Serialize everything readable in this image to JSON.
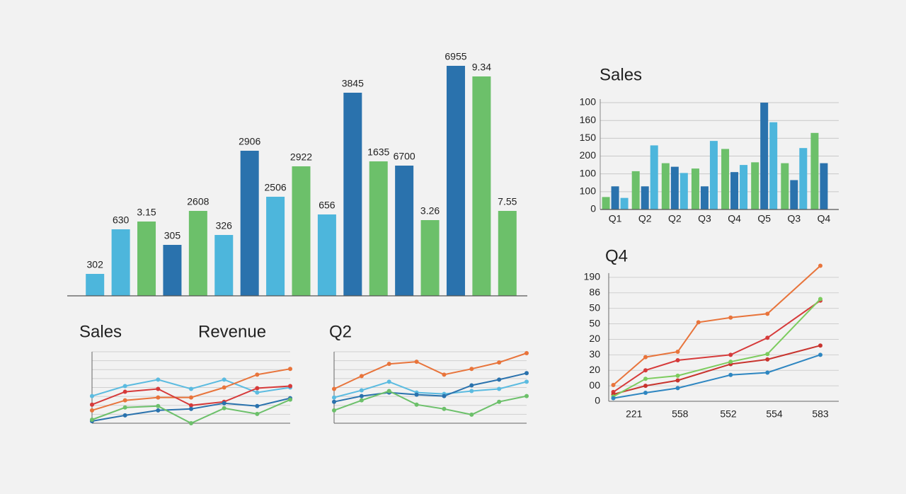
{
  "chart_data": [
    {
      "type": "bar",
      "categories": [
        null,
        null,
        null,
        null,
        null,
        null,
        null,
        null,
        null,
        null,
        null,
        null,
        null,
        null,
        null,
        null,
        null
      ],
      "values": [
        31,
        94,
        105,
        72,
        120,
        86,
        205,
        140,
        183,
        115,
        287,
        190,
        184,
        107,
        325,
        310,
        120
      ],
      "colors": [
        "#4db6dc",
        "#4db6dc",
        "#6cc06a",
        "#2a72ad",
        "#6cc06a",
        "#4db6dc",
        "#2a72ad",
        "#4db6dc",
        "#6cc06a",
        "#4db6dc",
        "#2a72ad",
        "#6cc06a",
        "#2a72ad",
        "#6cc06a",
        "#2a72ad",
        "#6cc06a",
        "#6cc06a"
      ],
      "bar_labels": [
        "302",
        "630",
        "3.15",
        "305",
        "2608",
        "326",
        "2906",
        "2506",
        "2922",
        "656",
        "3845",
        "1635",
        "6700",
        "3.26",
        "6955",
        "9.34",
        "7.55"
      ],
      "ylim": [
        0,
        340
      ]
    },
    {
      "type": "bar",
      "title": "Sales",
      "categories": [
        "Q1",
        "Q2",
        "Q2",
        "Q3",
        "Q4",
        "Q5",
        "Q3",
        "Q4"
      ],
      "series": [
        {
          "color": "#6cc06a",
          "values": [
            14,
            43,
            52,
            46,
            68,
            53,
            52,
            86
          ]
        },
        {
          "color": "#2a72ad",
          "values": [
            26,
            26,
            48,
            26,
            42,
            120,
            33,
            52
          ]
        },
        {
          "color": "#4db6dc",
          "values": [
            13,
            72,
            41,
            77,
            50,
            98,
            69,
            null
          ]
        }
      ],
      "ylim": [
        0,
        124
      ],
      "yticks": [
        0,
        {
          "value": 20,
          "label": "100"
        },
        {
          "value": 40,
          "label": "100"
        },
        {
          "value": 60,
          "label": "200"
        },
        {
          "value": 80,
          "label": "150"
        },
        {
          "value": 100,
          "label": "160"
        },
        {
          "value": 120,
          "label": "100"
        }
      ],
      "grid": true
    },
    {
      "type": "line",
      "title": "Sales",
      "subtitle": "Revenue",
      "categories": [
        null,
        null,
        null,
        null,
        null,
        null,
        null
      ],
      "series": [
        {
          "color": "#5bbbe0",
          "values": [
            38,
            52,
            61,
            48,
            61,
            43,
            50
          ]
        },
        {
          "color": "#e8743b",
          "values": [
            18,
            32,
            36,
            36,
            50,
            68,
            76
          ]
        },
        {
          "color": "#d63a3a",
          "values": [
            26,
            44,
            48,
            25,
            30,
            49,
            52
          ]
        },
        {
          "color": "#2a72ad",
          "values": [
            3,
            11,
            18,
            20,
            28,
            24,
            35
          ]
        },
        {
          "color": "#6cc06a",
          "values": [
            5,
            22,
            24,
            0,
            21,
            13,
            33
          ]
        }
      ],
      "ylim": [
        0,
        100
      ],
      "grid": true
    },
    {
      "type": "line",
      "title": "Q2",
      "categories": [
        null,
        null,
        null,
        null,
        null,
        null,
        null,
        null
      ],
      "series": [
        {
          "color": "#e8743b",
          "values": [
            48,
            66,
            83,
            86,
            68,
            76,
            85,
            98
          ]
        },
        {
          "color": "#5bbbe0",
          "values": [
            36,
            46,
            58,
            43,
            41,
            45,
            48,
            58
          ]
        },
        {
          "color": "#2a72ad",
          "values": [
            30,
            38,
            43,
            40,
            38,
            53,
            61,
            70
          ]
        },
        {
          "color": "#6cc06a",
          "values": [
            18,
            32,
            45,
            26,
            20,
            12,
            30,
            38
          ]
        }
      ],
      "ylim": [
        0,
        100
      ],
      "grid": true
    },
    {
      "type": "line",
      "title": "Q4",
      "series": [
        {
          "color": "#e8743b",
          "x": [
            2,
            16,
            30,
            39,
            53,
            69,
            92
          ],
          "values": [
            21,
            57,
            64,
            102,
            108,
            113,
            175
          ]
        },
        {
          "color": "#d63a3a",
          "x": [
            2,
            16,
            30,
            53,
            69,
            92
          ],
          "values": [
            12,
            40,
            53,
            60,
            82,
            130
          ]
        },
        {
          "color": "#c8342e",
          "x": [
            2,
            16,
            30,
            53,
            69,
            92
          ],
          "values": [
            9,
            20,
            27,
            48,
            54,
            72
          ]
        },
        {
          "color": "#7ccc5e",
          "x": [
            2,
            16,
            30,
            53,
            69,
            92
          ],
          "values": [
            6,
            29,
            33,
            51,
            61,
            132
          ]
        },
        {
          "color": "#2e86c1",
          "x": [
            2,
            16,
            30,
            53,
            69,
            92
          ],
          "values": [
            4,
            11,
            17,
            34,
            37,
            60
          ]
        }
      ],
      "xlim": [
        0,
        100
      ],
      "xticks": [
        {
          "value": 11,
          "label": "221"
        },
        {
          "value": 31,
          "label": "558"
        },
        {
          "value": 52,
          "label": "552"
        },
        {
          "value": 72,
          "label": "554"
        },
        {
          "value": 92,
          "label": "583"
        }
      ],
      "ylim": [
        0,
        180
      ],
      "yticks": [
        0,
        {
          "value": 20,
          "label": "00"
        },
        {
          "value": 40,
          "label": "20"
        },
        {
          "value": 60,
          "label": "30"
        },
        {
          "value": 80,
          "label": "20"
        },
        {
          "value": 100,
          "label": "50"
        },
        {
          "value": 120,
          "label": "50"
        },
        {
          "value": 140,
          "label": "86"
        },
        {
          "value": 160,
          "label": "190"
        }
      ],
      "grid": true
    }
  ]
}
